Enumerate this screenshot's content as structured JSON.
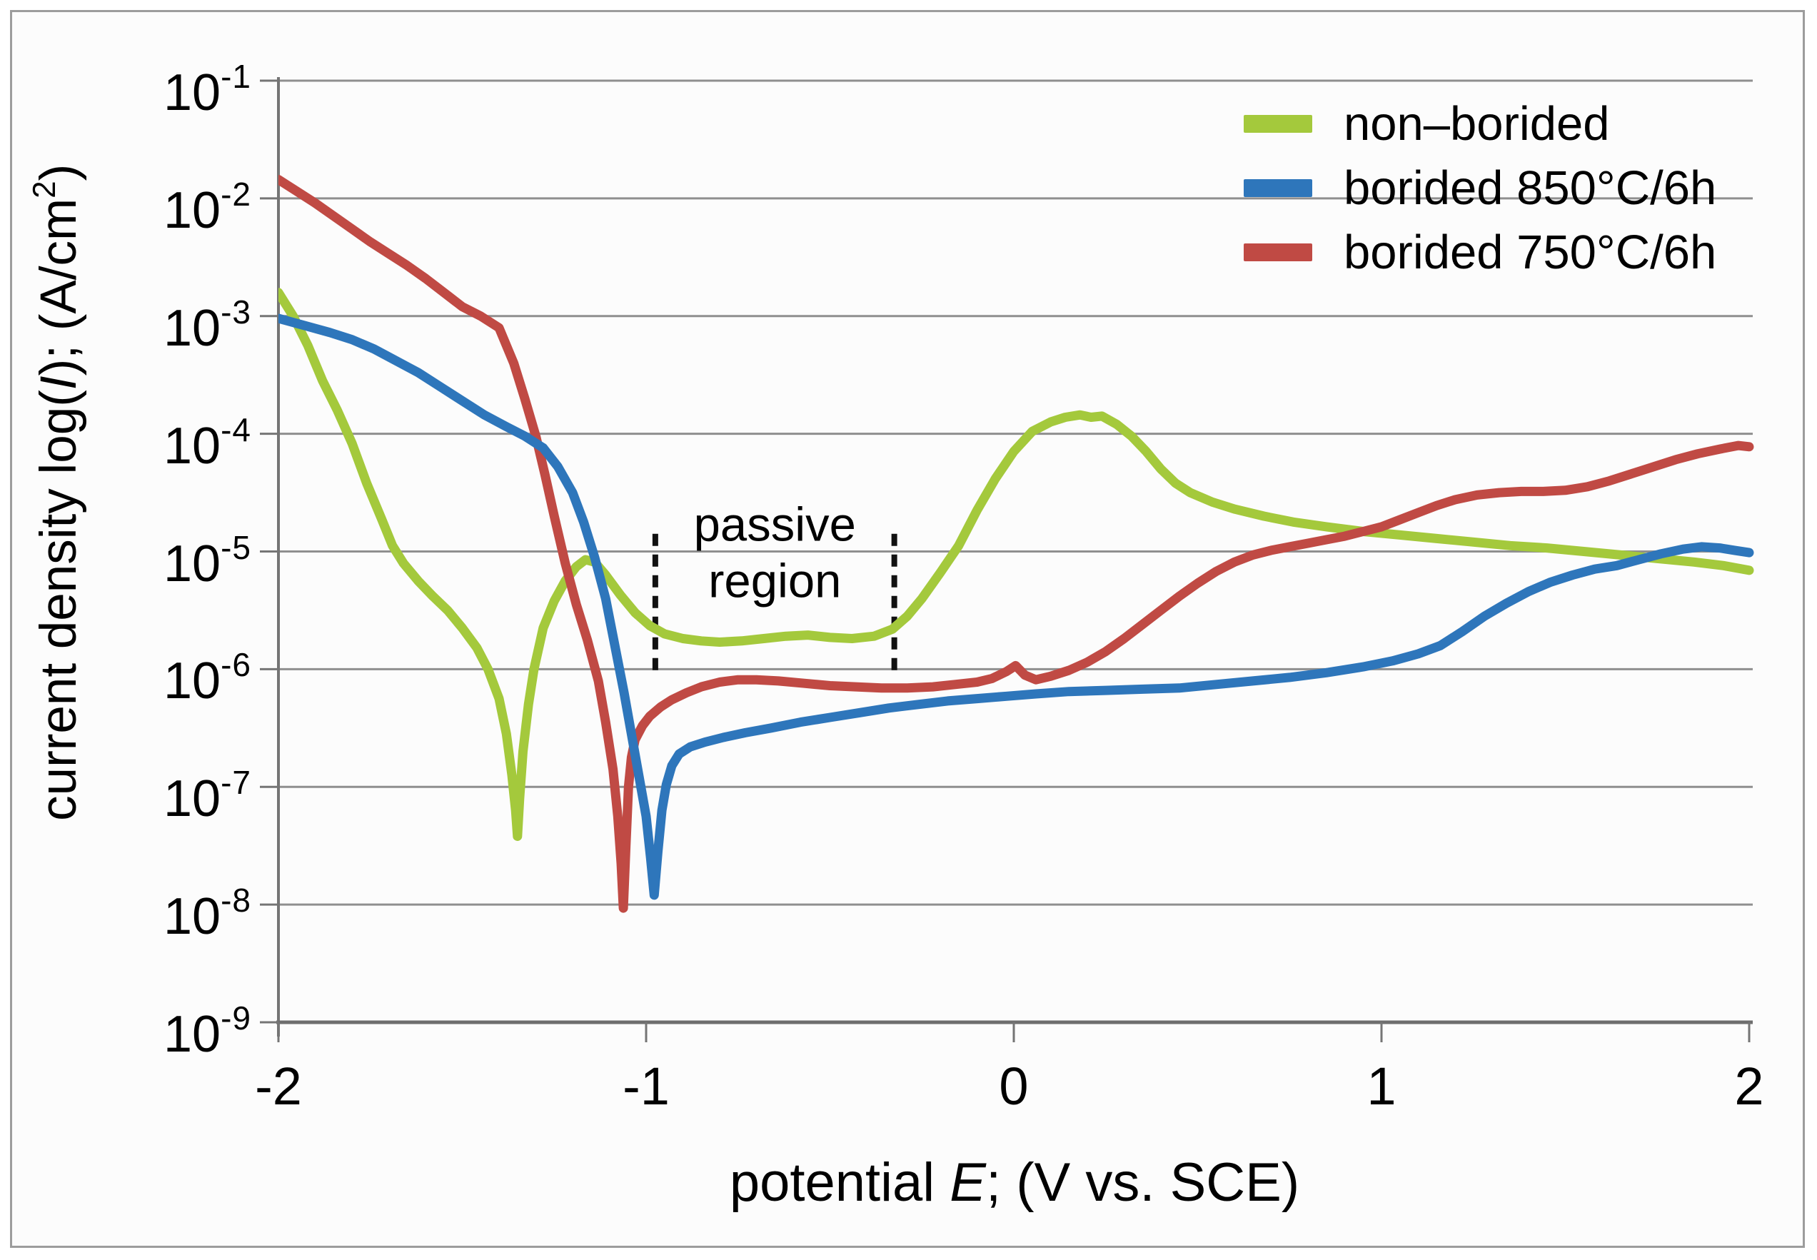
{
  "figure": {
    "background": "#fcfcfc",
    "border_color": "#9c9c9c",
    "grid_color": "#8f8f8f",
    "axis_color": "#757575",
    "text_color": "#000000"
  },
  "legend": {
    "items": [
      {
        "label": "non–borided",
        "color": "#a4c93c"
      },
      {
        "label": "borided 850°C/6h",
        "color": "#2e76bb"
      },
      {
        "label": "borided 750°C/6h",
        "color": "#c04a44"
      }
    ]
  },
  "chart_data": {
    "type": "line",
    "title": "",
    "xlabel": "potential E; (V vs. SCE)",
    "ylabel": "current density log(I); (A/cm2)",
    "xlabel_segments": [
      {
        "t": "potential "
      },
      {
        "t": "E",
        "italic": true
      },
      {
        "t": "; (V vs. SCE)"
      }
    ],
    "ylabel_segments": [
      {
        "t": "current density log("
      },
      {
        "t": "I",
        "italic": true
      },
      {
        "t": "); (A/cm"
      },
      {
        "t": "2",
        "sup": true
      },
      {
        "t": ")"
      }
    ],
    "xlim": [
      -2,
      2
    ],
    "x_ticks": [
      -2,
      -1,
      0,
      1,
      2
    ],
    "y_scale": "log",
    "y_tick_exponents": [
      -1,
      -2,
      -3,
      -4,
      -5,
      -6,
      -7,
      -8,
      -9
    ],
    "ylim_exponents": [
      -9,
      -1
    ],
    "grid": "horizontal",
    "legend_position": "top-right",
    "annotations": {
      "passive_region": {
        "text_lines": [
          "passive",
          "region"
        ],
        "from_V": -0.975,
        "to_V": -0.325,
        "line_top_log": -4.85,
        "line_bottom_log": -6.03,
        "label_center_V": -0.63,
        "label_line_logs": [
          -4.77,
          -5.25
        ]
      }
    },
    "series": [
      {
        "name": "non–borided",
        "color": "#a4c93c",
        "points_E_log10I": [
          [
            -2.0,
            -2.8
          ],
          [
            -1.96,
            -3.0
          ],
          [
            -1.92,
            -3.25
          ],
          [
            -1.88,
            -3.55
          ],
          [
            -1.84,
            -3.8
          ],
          [
            -1.8,
            -4.08
          ],
          [
            -1.76,
            -4.42
          ],
          [
            -1.72,
            -4.72
          ],
          [
            -1.69,
            -4.95
          ],
          [
            -1.66,
            -5.1
          ],
          [
            -1.62,
            -5.25
          ],
          [
            -1.58,
            -5.38
          ],
          [
            -1.54,
            -5.5
          ],
          [
            -1.5,
            -5.65
          ],
          [
            -1.46,
            -5.82
          ],
          [
            -1.43,
            -6.0
          ],
          [
            -1.4,
            -6.25
          ],
          [
            -1.38,
            -6.55
          ],
          [
            -1.365,
            -6.9
          ],
          [
            -1.355,
            -7.2
          ],
          [
            -1.35,
            -7.42
          ],
          [
            -1.344,
            -7.1
          ],
          [
            -1.335,
            -6.7
          ],
          [
            -1.32,
            -6.3
          ],
          [
            -1.305,
            -6.0
          ],
          [
            -1.28,
            -5.65
          ],
          [
            -1.25,
            -5.42
          ],
          [
            -1.22,
            -5.25
          ],
          [
            -1.19,
            -5.13
          ],
          [
            -1.165,
            -5.07
          ],
          [
            -1.14,
            -5.09
          ],
          [
            -1.11,
            -5.2
          ],
          [
            -1.07,
            -5.37
          ],
          [
            -1.03,
            -5.52
          ],
          [
            -0.99,
            -5.63
          ],
          [
            -0.95,
            -5.7
          ],
          [
            -0.9,
            -5.74
          ],
          [
            -0.85,
            -5.76
          ],
          [
            -0.8,
            -5.77
          ],
          [
            -0.74,
            -5.76
          ],
          [
            -0.68,
            -5.74
          ],
          [
            -0.62,
            -5.72
          ],
          [
            -0.56,
            -5.71
          ],
          [
            -0.5,
            -5.73
          ],
          [
            -0.44,
            -5.74
          ],
          [
            -0.38,
            -5.72
          ],
          [
            -0.33,
            -5.66
          ],
          [
            -0.29,
            -5.55
          ],
          [
            -0.25,
            -5.4
          ],
          [
            -0.2,
            -5.18
          ],
          [
            -0.15,
            -4.95
          ],
          [
            -0.1,
            -4.65
          ],
          [
            -0.05,
            -4.38
          ],
          [
            0.0,
            -4.15
          ],
          [
            0.05,
            -3.98
          ],
          [
            0.1,
            -3.9
          ],
          [
            0.14,
            -3.86
          ],
          [
            0.18,
            -3.84
          ],
          [
            0.21,
            -3.86
          ],
          [
            0.24,
            -3.85
          ],
          [
            0.28,
            -3.92
          ],
          [
            0.32,
            -4.02
          ],
          [
            0.36,
            -4.15
          ],
          [
            0.4,
            -4.3
          ],
          [
            0.44,
            -4.42
          ],
          [
            0.48,
            -4.5
          ],
          [
            0.54,
            -4.58
          ],
          [
            0.6,
            -4.64
          ],
          [
            0.68,
            -4.7
          ],
          [
            0.76,
            -4.75
          ],
          [
            0.85,
            -4.79
          ],
          [
            0.95,
            -4.83
          ],
          [
            1.05,
            -4.86
          ],
          [
            1.15,
            -4.89
          ],
          [
            1.25,
            -4.92
          ],
          [
            1.35,
            -4.95
          ],
          [
            1.45,
            -4.97
          ],
          [
            1.55,
            -5.0
          ],
          [
            1.65,
            -5.03
          ],
          [
            1.75,
            -5.06
          ],
          [
            1.85,
            -5.09
          ],
          [
            1.93,
            -5.12
          ],
          [
            2.0,
            -5.16
          ]
        ]
      },
      {
        "name": "borided 850°C/6h",
        "color": "#2e76bb",
        "points_E_log10I": [
          [
            -2.0,
            -3.02
          ],
          [
            -1.93,
            -3.08
          ],
          [
            -1.86,
            -3.14
          ],
          [
            -1.8,
            -3.2
          ],
          [
            -1.74,
            -3.28
          ],
          [
            -1.68,
            -3.38
          ],
          [
            -1.62,
            -3.48
          ],
          [
            -1.56,
            -3.6
          ],
          [
            -1.5,
            -3.72
          ],
          [
            -1.44,
            -3.84
          ],
          [
            -1.38,
            -3.94
          ],
          [
            -1.33,
            -4.02
          ],
          [
            -1.28,
            -4.12
          ],
          [
            -1.24,
            -4.28
          ],
          [
            -1.2,
            -4.5
          ],
          [
            -1.17,
            -4.75
          ],
          [
            -1.14,
            -5.05
          ],
          [
            -1.11,
            -5.4
          ],
          [
            -1.085,
            -5.8
          ],
          [
            -1.06,
            -6.2
          ],
          [
            -1.04,
            -6.55
          ],
          [
            -1.02,
            -6.9
          ],
          [
            -1.0,
            -7.25
          ],
          [
            -0.988,
            -7.6
          ],
          [
            -0.978,
            -7.92
          ],
          [
            -0.968,
            -7.55
          ],
          [
            -0.957,
            -7.2
          ],
          [
            -0.945,
            -6.98
          ],
          [
            -0.93,
            -6.82
          ],
          [
            -0.91,
            -6.72
          ],
          [
            -0.88,
            -6.66
          ],
          [
            -0.84,
            -6.62
          ],
          [
            -0.79,
            -6.58
          ],
          [
            -0.73,
            -6.54
          ],
          [
            -0.66,
            -6.5
          ],
          [
            -0.58,
            -6.45
          ],
          [
            -0.5,
            -6.41
          ],
          [
            -0.42,
            -6.37
          ],
          [
            -0.34,
            -6.33
          ],
          [
            -0.26,
            -6.3
          ],
          [
            -0.18,
            -6.27
          ],
          [
            -0.1,
            -6.25
          ],
          [
            -0.02,
            -6.23
          ],
          [
            0.06,
            -6.21
          ],
          [
            0.15,
            -6.19
          ],
          [
            0.25,
            -6.18
          ],
          [
            0.35,
            -6.17
          ],
          [
            0.45,
            -6.16
          ],
          [
            0.55,
            -6.13
          ],
          [
            0.65,
            -6.1
          ],
          [
            0.75,
            -6.07
          ],
          [
            0.85,
            -6.03
          ],
          [
            0.95,
            -5.98
          ],
          [
            1.03,
            -5.93
          ],
          [
            1.1,
            -5.87
          ],
          [
            1.16,
            -5.8
          ],
          [
            1.22,
            -5.68
          ],
          [
            1.28,
            -5.55
          ],
          [
            1.34,
            -5.44
          ],
          [
            1.4,
            -5.34
          ],
          [
            1.46,
            -5.26
          ],
          [
            1.52,
            -5.2
          ],
          [
            1.58,
            -5.15
          ],
          [
            1.64,
            -5.12
          ],
          [
            1.7,
            -5.07
          ],
          [
            1.76,
            -5.02
          ],
          [
            1.82,
            -4.98
          ],
          [
            1.87,
            -4.96
          ],
          [
            1.92,
            -4.97
          ],
          [
            1.96,
            -4.99
          ],
          [
            2.0,
            -5.01
          ]
        ]
      },
      {
        "name": "borided 750°C/6h",
        "color": "#c04a44",
        "points_E_log10I": [
          [
            -2.0,
            -1.84
          ],
          [
            -1.95,
            -1.94
          ],
          [
            -1.9,
            -2.04
          ],
          [
            -1.85,
            -2.15
          ],
          [
            -1.8,
            -2.26
          ],
          [
            -1.75,
            -2.37
          ],
          [
            -1.7,
            -2.47
          ],
          [
            -1.65,
            -2.57
          ],
          [
            -1.6,
            -2.68
          ],
          [
            -1.55,
            -2.8
          ],
          [
            -1.5,
            -2.92
          ],
          [
            -1.45,
            -3.0
          ],
          [
            -1.4,
            -3.1
          ],
          [
            -1.36,
            -3.4
          ],
          [
            -1.33,
            -3.7
          ],
          [
            -1.3,
            -4.02
          ],
          [
            -1.275,
            -4.35
          ],
          [
            -1.25,
            -4.7
          ],
          [
            -1.22,
            -5.1
          ],
          [
            -1.19,
            -5.45
          ],
          [
            -1.16,
            -5.75
          ],
          [
            -1.13,
            -6.1
          ],
          [
            -1.11,
            -6.45
          ],
          [
            -1.09,
            -6.85
          ],
          [
            -1.077,
            -7.25
          ],
          [
            -1.068,
            -7.65
          ],
          [
            -1.062,
            -8.03
          ],
          [
            -1.055,
            -7.5
          ],
          [
            -1.048,
            -7.0
          ],
          [
            -1.04,
            -6.75
          ],
          [
            -1.03,
            -6.6
          ],
          [
            -1.01,
            -6.48
          ],
          [
            -0.99,
            -6.4
          ],
          [
            -0.96,
            -6.32
          ],
          [
            -0.93,
            -6.26
          ],
          [
            -0.89,
            -6.2
          ],
          [
            -0.85,
            -6.15
          ],
          [
            -0.8,
            -6.11
          ],
          [
            -0.75,
            -6.09
          ],
          [
            -0.7,
            -6.09
          ],
          [
            -0.64,
            -6.1
          ],
          [
            -0.57,
            -6.12
          ],
          [
            -0.5,
            -6.14
          ],
          [
            -0.43,
            -6.15
          ],
          [
            -0.36,
            -6.16
          ],
          [
            -0.29,
            -6.16
          ],
          [
            -0.22,
            -6.15
          ],
          [
            -0.16,
            -6.13
          ],
          [
            -0.1,
            -6.11
          ],
          [
            -0.06,
            -6.08
          ],
          [
            -0.02,
            -6.02
          ],
          [
            0.005,
            -5.97
          ],
          [
            0.03,
            -6.05
          ],
          [
            0.06,
            -6.09
          ],
          [
            0.1,
            -6.06
          ],
          [
            0.15,
            -6.01
          ],
          [
            0.2,
            -5.94
          ],
          [
            0.25,
            -5.85
          ],
          [
            0.3,
            -5.74
          ],
          [
            0.35,
            -5.62
          ],
          [
            0.4,
            -5.5
          ],
          [
            0.45,
            -5.38
          ],
          [
            0.5,
            -5.27
          ],
          [
            0.55,
            -5.17
          ],
          [
            0.6,
            -5.09
          ],
          [
            0.65,
            -5.03
          ],
          [
            0.7,
            -4.99
          ],
          [
            0.75,
            -4.96
          ],
          [
            0.8,
            -4.93
          ],
          [
            0.85,
            -4.9
          ],
          [
            0.9,
            -4.87
          ],
          [
            0.95,
            -4.83
          ],
          [
            1.0,
            -4.79
          ],
          [
            1.05,
            -4.73
          ],
          [
            1.1,
            -4.67
          ],
          [
            1.15,
            -4.61
          ],
          [
            1.2,
            -4.56
          ],
          [
            1.26,
            -4.52
          ],
          [
            1.32,
            -4.5
          ],
          [
            1.38,
            -4.49
          ],
          [
            1.44,
            -4.49
          ],
          [
            1.5,
            -4.48
          ],
          [
            1.56,
            -4.45
          ],
          [
            1.62,
            -4.4
          ],
          [
            1.68,
            -4.34
          ],
          [
            1.74,
            -4.28
          ],
          [
            1.8,
            -4.22
          ],
          [
            1.86,
            -4.17
          ],
          [
            1.92,
            -4.13
          ],
          [
            1.97,
            -4.1
          ],
          [
            2.0,
            -4.11
          ]
        ]
      }
    ]
  }
}
